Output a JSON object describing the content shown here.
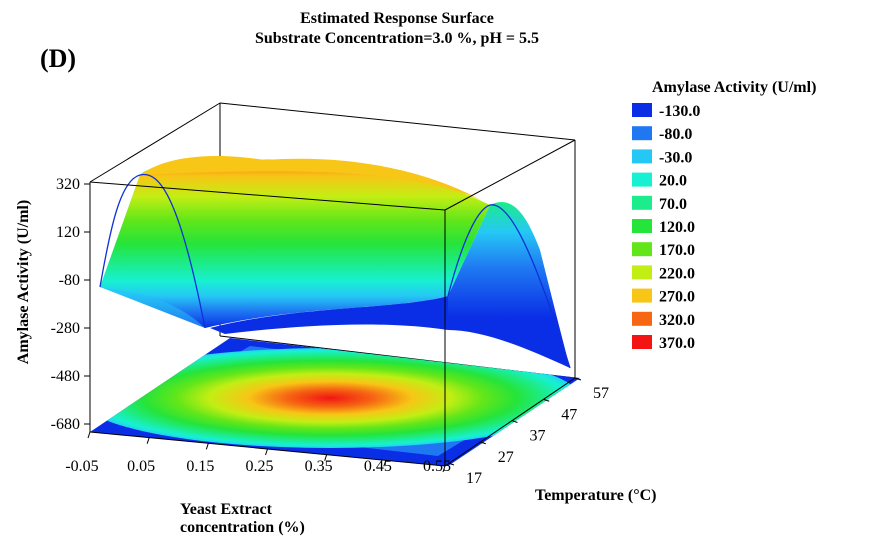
{
  "panel_label": "(D)",
  "chart_data": {
    "type": "surface",
    "title": "Estimated Response Surface",
    "subtitle": "Substrate Concentration=3.0 %, pH = 5.5",
    "xlabel_line1": "Yeast Extract",
    "xlabel_line2": "concentration (%)",
    "ylabel": "Temperature (°C)",
    "zlabel": "Amylase Activity (U/ml)",
    "x_ticks": [
      "-0.05",
      "0.05",
      "0.15",
      "0.25",
      "0.35",
      "0.45",
      "0.55"
    ],
    "y_ticks": [
      "17",
      "27",
      "37",
      "47",
      "57"
    ],
    "z_ticks": [
      "320",
      "120",
      "-80",
      "-280",
      "-480",
      "-680"
    ],
    "xlim": [
      -0.05,
      0.55
    ],
    "ylim": [
      17,
      57
    ],
    "zlim": [
      -680,
      320
    ],
    "legend": {
      "title": "Amylase Activity (U/ml)",
      "placement": "right",
      "levels": [
        {
          "label": "-130.0",
          "color": "#0a2ee6"
        },
        {
          "label": "-80.0",
          "color": "#1f78f2"
        },
        {
          "label": "-30.0",
          "color": "#25c8f5"
        },
        {
          "label": "20.0",
          "color": "#18f0d2"
        },
        {
          "label": "70.0",
          "color": "#1cec8c"
        },
        {
          "label": "120.0",
          "color": "#25e43a"
        },
        {
          "label": "170.0",
          "color": "#62e619"
        },
        {
          "label": "220.0",
          "color": "#c2ee14"
        },
        {
          "label": "270.0",
          "color": "#f7c616"
        },
        {
          "label": "320.0",
          "color": "#f66613"
        },
        {
          "label": "370.0",
          "color": "#f21513"
        }
      ]
    }
  }
}
